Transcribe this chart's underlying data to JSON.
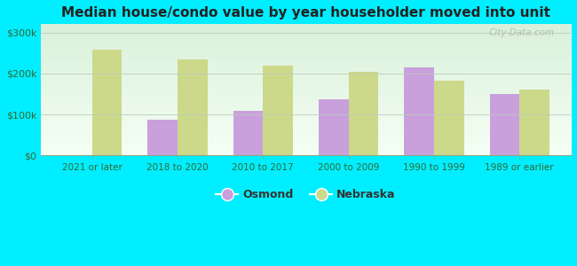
{
  "title": "Median house/condo value by year householder moved into unit",
  "categories": [
    "2021 or later",
    "2018 to 2020",
    "2010 to 2017",
    "2000 to 2009",
    "1990 to 1999",
    "1989 or earlier"
  ],
  "osmond_values": [
    null,
    87000,
    108000,
    137000,
    215000,
    150000
  ],
  "nebraska_values": [
    258000,
    235000,
    220000,
    203000,
    183000,
    160000
  ],
  "osmond_color": "#c9a0dc",
  "nebraska_color": "#ccd98a",
  "background_outer": "#00eeff",
  "ylabel_color": "#666666",
  "title_color": "#222222",
  "yticks": [
    0,
    100000,
    200000,
    300000
  ],
  "ytick_labels": [
    "$0",
    "$100k",
    "$200k",
    "$300k"
  ],
  "ylim": [
    0,
    320000
  ],
  "bar_width": 0.35,
  "watermark_text": "City-Data.com",
  "legend_osmond": "Osmond",
  "legend_nebraska": "Nebraska"
}
